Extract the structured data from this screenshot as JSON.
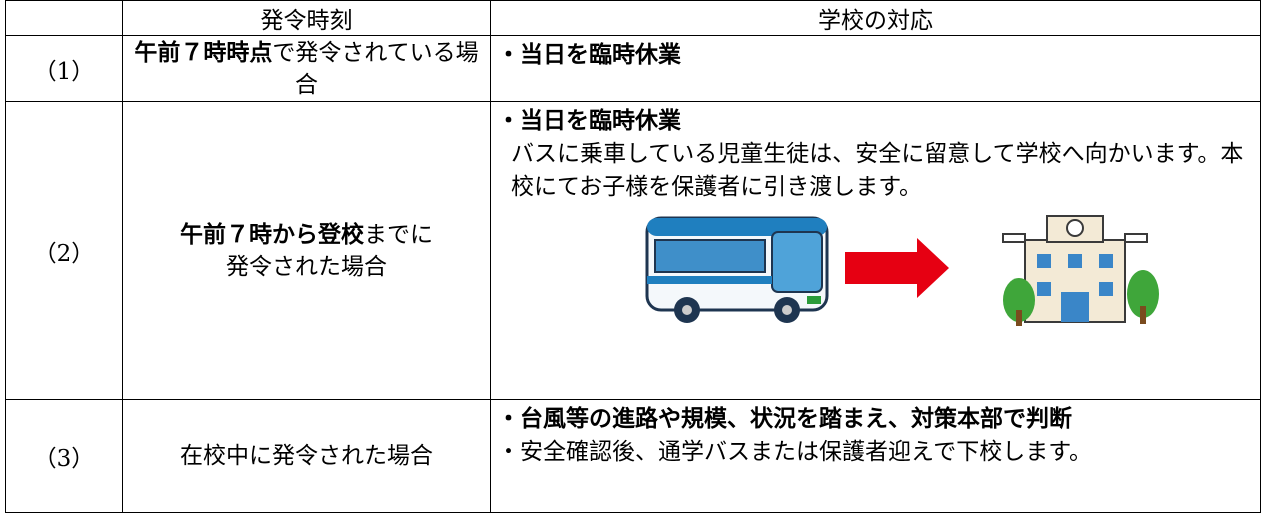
{
  "table": {
    "header": [
      "発令時刻",
      "学校の対応"
    ],
    "rows": [
      {
        "label": "（1）",
        "timing": [
          [
            {
              "text": "午前７時時点",
              "bold": true
            },
            {
              "text": "で発令されている場合",
              "bold": false
            }
          ]
        ],
        "response": [
          [
            {
              "text": "・当日を臨時休業",
              "bold": true
            }
          ]
        ]
      },
      {
        "label": "（2）",
        "timing": [
          [
            {
              "text": "午前７時から登校",
              "bold": true
            },
            {
              "text": "までに",
              "bold": false
            }
          ],
          [
            {
              "text": "発令された場合",
              "bold": false
            }
          ]
        ],
        "response": [
          [
            {
              "text": "・当日を臨時休業",
              "bold": true
            }
          ],
          [
            {
              "text": "バスに乗車している児童生徒は、安全に留意して学校へ向かいます。本校にてお子様を保護者に引き渡します。",
              "bold": false
            }
          ]
        ]
      },
      {
        "label": "（3）",
        "timing": [
          [
            {
              "text": "在校中に発令された場合",
              "bold": false
            }
          ]
        ],
        "response": [
          [
            {
              "text": "・台風等の進路や規模、状況を踏まえ、対策本部で判断",
              "bold": true
            }
          ],
          [
            {
              "text": "・安全確認後、通学バスまたは保護者迎えで下校します。",
              "bold": false
            }
          ]
        ]
      }
    ]
  }
}
